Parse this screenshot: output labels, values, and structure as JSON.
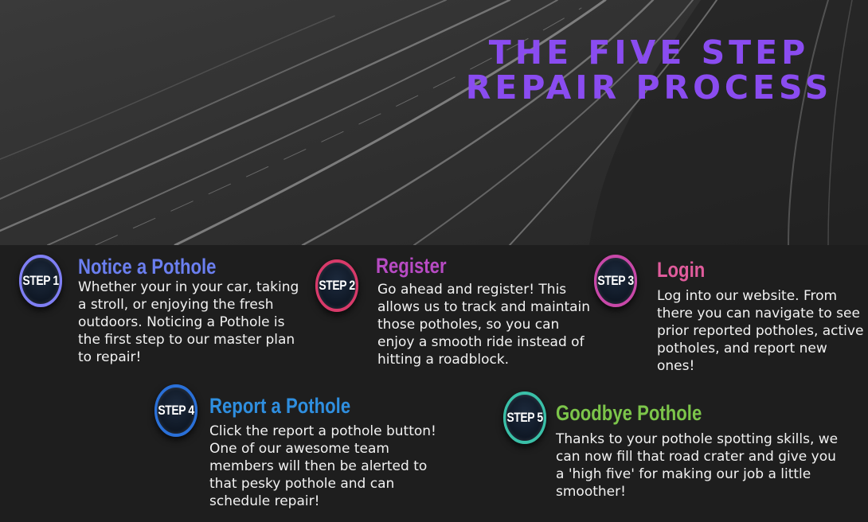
{
  "hero": {
    "title_line1": "THE FIVE STEP",
    "title_line2": "REPAIR PROCESS",
    "title_color": "#8a4cf0"
  },
  "steps": [
    {
      "badge": "STEP 1",
      "title": "Notice a Pothole",
      "body": "Whether your in your car, taking a stroll, or enjoying the fresh outdoors. Noticing a Pothole is the first step to our master plan to repair!",
      "color": "#6b7ff0",
      "ring": "#7f7ff5"
    },
    {
      "badge": "STEP 2",
      "title": "Register",
      "body": "Go ahead and register! This allows us to track and maintain those potholes, so you can enjoy a smooth ride instead of hitting a roadblock.",
      "color": "#b84bc4",
      "ring": "#d83a6a"
    },
    {
      "badge": "STEP 3",
      "title": "Login",
      "body": "Log into our website. From there you can navigate to see prior reported potholes, active potholes, and report new ones!",
      "color": "#e05c9c",
      "ring": "#c848a8"
    },
    {
      "badge": "STEP 4",
      "title": "Report a Pothole",
      "body": "Click the report a pothole button! One of our awesome team members will then be alerted to that pesky pothole and can schedule repair!",
      "color": "#2f8fe0",
      "ring": "#2a70d8"
    },
    {
      "badge": "STEP 5",
      "title": "Goodbye Pothole",
      "body": "Thanks to your pothole spotting skills, we can now fill that road crater and give you a 'high five' for making our job a little smoother!",
      "color": "#7cc54a",
      "ring": "#3ac0a8"
    }
  ]
}
